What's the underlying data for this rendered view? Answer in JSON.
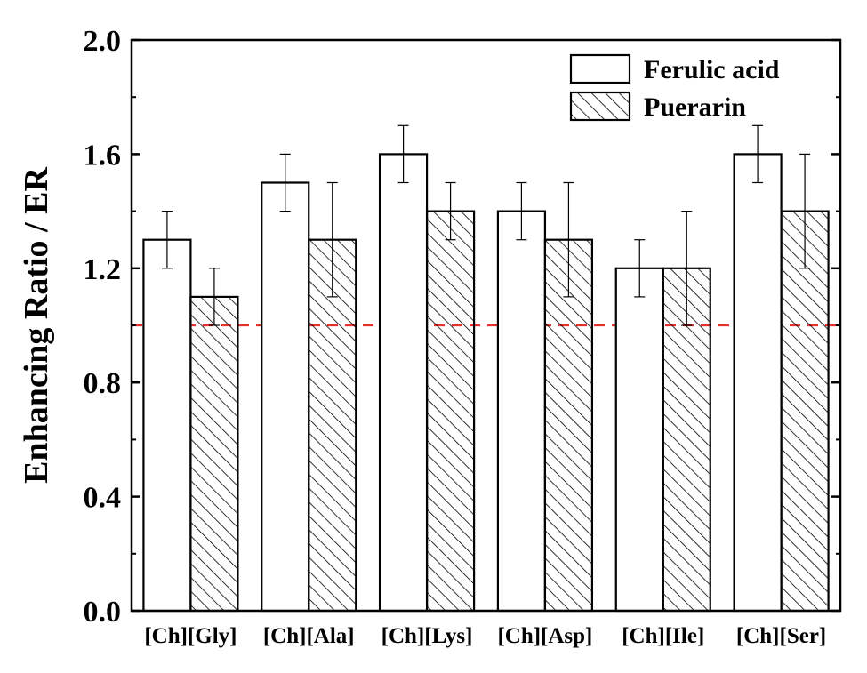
{
  "chart_data": {
    "type": "bar",
    "title": "",
    "xlabel": "",
    "ylabel": "Enhancing Ratio / ER",
    "ylim": [
      0.0,
      2.0
    ],
    "yticks": [
      "0.0",
      "0.4",
      "0.8",
      "1.2",
      "1.6",
      "2.0"
    ],
    "categories": [
      "[Ch][Gly]",
      "[Ch][Ala]",
      "[Ch][Lys]",
      "[Ch][Asp]",
      "[Ch][Ile]",
      "[Ch][Ser]"
    ],
    "series": [
      {
        "name": "Ferulic acid",
        "pattern": "plain",
        "values": [
          1.3,
          1.5,
          1.6,
          1.4,
          1.2,
          1.6
        ],
        "errors": [
          0.1,
          0.1,
          0.1,
          0.1,
          0.1,
          0.1
        ]
      },
      {
        "name": "Puerarin",
        "pattern": "hatched",
        "values": [
          1.1,
          1.3,
          1.4,
          1.3,
          1.2,
          1.4
        ],
        "errors": [
          0.1,
          0.2,
          0.1,
          0.2,
          0.2,
          0.2
        ]
      }
    ],
    "reference_line": {
      "y": 1.0,
      "color": "#e8302a",
      "style": "dashed"
    },
    "legend_position": "top-right",
    "grid": false
  }
}
